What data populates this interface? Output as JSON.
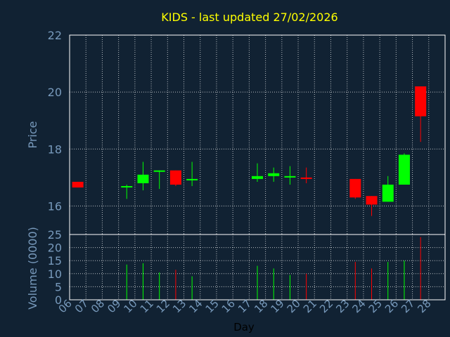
{
  "colors": {
    "background": "#112233",
    "title": "#ffff00",
    "axis_text": "#7799bb",
    "grid": "#ffffff",
    "up": "#00ff00",
    "down": "#ff0000"
  },
  "chart_data": [
    {
      "type": "candlestick",
      "title": "KIDS - last updated 27/02/2026",
      "ylabel": "Price",
      "ylim": [
        15,
        22
      ],
      "yticks": [
        16,
        18,
        20,
        22
      ],
      "grid": true,
      "categories": [
        "06",
        "07",
        "08",
        "09",
        "10",
        "11",
        "12",
        "13",
        "14",
        "15",
        "16",
        "17",
        "18",
        "19",
        "20",
        "21",
        "22",
        "23",
        "24",
        "25",
        "26",
        "27",
        "28"
      ],
      "candles": [
        {
          "day": "06",
          "open": 16.85,
          "high": 16.85,
          "low": 16.65,
          "close": 16.65
        },
        {
          "day": "09",
          "open": 16.65,
          "high": 16.75,
          "low": 16.25,
          "close": 16.7
        },
        {
          "day": "10",
          "open": 16.8,
          "high": 17.55,
          "low": 16.55,
          "close": 17.1
        },
        {
          "day": "11",
          "open": 17.2,
          "high": 17.25,
          "low": 16.6,
          "close": 17.25
        },
        {
          "day": "12",
          "open": 17.25,
          "high": 17.25,
          "low": 16.7,
          "close": 16.75
        },
        {
          "day": "13",
          "open": 16.9,
          "high": 17.55,
          "low": 16.7,
          "close": 16.95
        },
        {
          "day": "17",
          "open": 16.95,
          "high": 17.5,
          "low": 16.85,
          "close": 17.05
        },
        {
          "day": "18",
          "open": 17.05,
          "high": 17.35,
          "low": 16.85,
          "close": 17.15
        },
        {
          "day": "19",
          "open": 17.0,
          "high": 17.4,
          "low": 16.75,
          "close": 17.05
        },
        {
          "day": "20",
          "open": 17.0,
          "high": 17.35,
          "low": 16.8,
          "close": 16.95
        },
        {
          "day": "23",
          "open": 16.95,
          "high": 16.95,
          "low": 16.25,
          "close": 16.3
        },
        {
          "day": "24",
          "open": 16.35,
          "high": 16.35,
          "low": 15.65,
          "close": 16.05
        },
        {
          "day": "25",
          "open": 16.15,
          "high": 17.05,
          "low": 16.15,
          "close": 16.75
        },
        {
          "day": "26",
          "open": 16.75,
          "high": 17.85,
          "low": 16.75,
          "close": 17.8
        },
        {
          "day": "27",
          "open": 20.2,
          "high": 20.2,
          "low": 18.25,
          "close": 19.15
        }
      ]
    },
    {
      "type": "bar",
      "xlabel": "Day",
      "ylabel": "Volume (0000)",
      "ylim": [
        0,
        25
      ],
      "yticks": [
        0,
        5,
        10,
        15,
        20,
        25
      ],
      "grid": true,
      "categories": [
        "06",
        "07",
        "08",
        "09",
        "10",
        "11",
        "12",
        "13",
        "14",
        "15",
        "16",
        "17",
        "18",
        "19",
        "20",
        "21",
        "22",
        "23",
        "24",
        "25",
        "26",
        "27",
        "28"
      ],
      "bars": [
        {
          "day": "06",
          "value": 0,
          "direction": "down"
        },
        {
          "day": "09",
          "value": 13.5,
          "direction": "up"
        },
        {
          "day": "10",
          "value": 14,
          "direction": "up"
        },
        {
          "day": "11",
          "value": 10.5,
          "direction": "up"
        },
        {
          "day": "12",
          "value": 11.5,
          "direction": "down"
        },
        {
          "day": "13",
          "value": 9,
          "direction": "up"
        },
        {
          "day": "17",
          "value": 13,
          "direction": "up"
        },
        {
          "day": "18",
          "value": 12,
          "direction": "up"
        },
        {
          "day": "19",
          "value": 9.5,
          "direction": "up"
        },
        {
          "day": "20",
          "value": 10,
          "direction": "down"
        },
        {
          "day": "23",
          "value": 14.5,
          "direction": "down"
        },
        {
          "day": "24",
          "value": 12,
          "direction": "down"
        },
        {
          "day": "25",
          "value": 14.5,
          "direction": "up"
        },
        {
          "day": "26",
          "value": 15,
          "direction": "up"
        },
        {
          "day": "27",
          "value": 24,
          "direction": "down"
        }
      ]
    }
  ]
}
